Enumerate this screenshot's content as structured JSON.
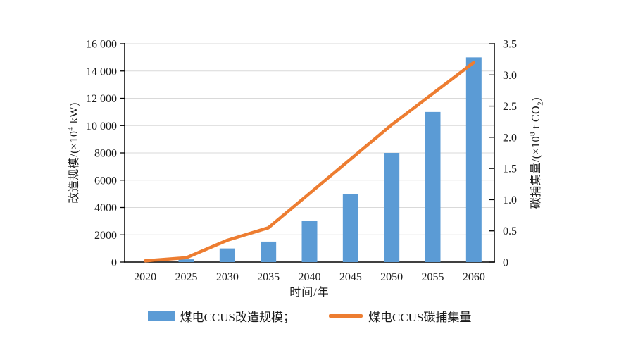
{
  "chart_data": {
    "type": "combo-bar-line",
    "title": "",
    "categories": [
      "2020",
      "2025",
      "2030",
      "2035",
      "2040",
      "2045",
      "2050",
      "2055",
      "2060"
    ],
    "series": [
      {
        "name": "煤电CCUS改造规模",
        "type": "bar",
        "axis": "left",
        "color": "#5B9BD5",
        "values": [
          0,
          200,
          1000,
          1500,
          3000,
          5000,
          8000,
          11000,
          15000
        ]
      },
      {
        "name": "煤电CCUS碳捕集量",
        "type": "line",
        "axis": "right",
        "color": "#ED7D31",
        "values": [
          0.02,
          0.07,
          0.35,
          0.55,
          1.1,
          1.65,
          2.2,
          2.7,
          3.2
        ]
      }
    ],
    "left_axis": {
      "label": "改造规模/(×10⁴ kW)",
      "min": 0,
      "max": 16000,
      "tick_step": 2000,
      "tick_labels": [
        "0",
        "2000",
        "4000",
        "6000",
        "8000",
        "10 000",
        "12 000",
        "14 000",
        "16 000"
      ]
    },
    "right_axis": {
      "label": "碳捕集量/(×10⁸ t CO₂)",
      "min": 0,
      "max": 3.5,
      "tick_step": 0.5,
      "tick_labels": [
        "0",
        "0.5",
        "1.0",
        "1.5",
        "2.0",
        "2.5",
        "3.0",
        "3.5"
      ]
    },
    "x_axis": {
      "label": "时间/年"
    },
    "legend": {
      "position": "bottom",
      "items": [
        {
          "label": "煤电CCUS改造规模；",
          "swatch": "bar"
        },
        {
          "label": "煤电CCUS碳捕集量",
          "swatch": "line"
        }
      ]
    },
    "grid": {
      "show": true,
      "color": "#D9D9D9"
    },
    "colors": {
      "bar": "#5B9BD5",
      "line": "#ED7D31",
      "axis": "#000000",
      "grid": "#D9D9D9"
    }
  },
  "axis_titles": {
    "left": {
      "prefix": "改造规模/(×10",
      "sup": "4",
      "suffix": " kW)"
    },
    "right": {
      "prefix": "碳捕集量/(×10",
      "sup": "8",
      "mid": " t CO",
      "sub": "2",
      "end": ")"
    },
    "x": "时间/年"
  }
}
